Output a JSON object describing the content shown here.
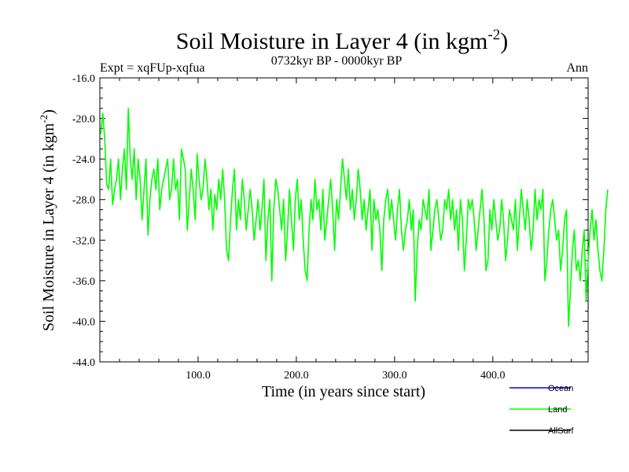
{
  "chart_data": {
    "type": "line",
    "title": "Soil Moisture in Layer 4 (in kgm",
    "title_sup": "-2",
    "title_end": ")",
    "subtitle": "0732kyr BP - 0000kyr BP",
    "expt_label": "Expt = xqFUp-xqfua",
    "period_label": "Ann",
    "xlabel": "Time (in years since start)",
    "ylabel": "Soil Moisture in Layer 4 (in kgm",
    "ylabel_sup": "-2",
    "ylabel_end": ")",
    "xlim": [
      0,
      497
    ],
    "ylim": [
      -44,
      -16
    ],
    "x_ticks": [
      100,
      200,
      300,
      400
    ],
    "x_tick_labels": [
      "100.0",
      "200.0",
      "300.0",
      "400.0"
    ],
    "y_ticks": [
      -16,
      -20,
      -24,
      -28,
      -32,
      -36,
      -40,
      -44
    ],
    "y_tick_labels": [
      "-16.0",
      "-20.0",
      "-24.0",
      "-28.0",
      "-32.0",
      "-36.0",
      "-40.0",
      "-44.0"
    ],
    "legend_position": "bottom-right",
    "series": [
      {
        "name": "Ocean",
        "color": "#0000ff",
        "values": []
      },
      {
        "name": "Land",
        "color": "#00ff00",
        "x_start": 1,
        "x_step": 2,
        "values": [
          -21.5,
          -19.5,
          -22,
          -26.5,
          -27,
          -24,
          -28.5,
          -27,
          -26,
          -24,
          -28,
          -25,
          -23,
          -27,
          -19,
          -24,
          -26,
          -23,
          -28,
          -24,
          -26,
          -30,
          -27,
          -24,
          -31.5,
          -28,
          -26,
          -25,
          -27,
          -24,
          -29,
          -27,
          -26,
          -25,
          -24,
          -28,
          -27,
          -24,
          -27,
          -26,
          -30,
          -23,
          -24,
          -25,
          -31,
          -28,
          -25,
          -27,
          -30,
          -23.5,
          -26,
          -28,
          -27,
          -24,
          -26,
          -29,
          -27,
          -31,
          -27.5,
          -29,
          -26,
          -28,
          -25,
          -28,
          -33,
          -34,
          -30,
          -27,
          -25,
          -31,
          -28,
          -30,
          -26,
          -28,
          -31,
          -29,
          -27,
          -29,
          -32,
          -30,
          -28,
          -31,
          -29,
          -26,
          -34,
          -30,
          -28,
          -36,
          -29,
          -26,
          -27,
          -29,
          -31,
          -28,
          -34,
          -31,
          -27,
          -30,
          -33,
          -28,
          -26,
          -30,
          -28,
          -32,
          -35,
          -36,
          -31,
          -28,
          -30,
          -26,
          -29,
          -28,
          -31,
          -27,
          -32,
          -30,
          -28,
          -26,
          -29,
          -33,
          -28,
          -30,
          -27,
          -24,
          -26,
          -28,
          -25,
          -29,
          -27,
          -30,
          -28,
          -25,
          -27,
          -30,
          -28,
          -31,
          -29,
          -27,
          -33,
          -28,
          -30,
          -29,
          -31,
          -35,
          -30,
          -28,
          -27,
          -30,
          -28,
          -30,
          -32,
          -29,
          -27,
          -31,
          -33,
          -31,
          -30,
          -28,
          -31,
          -29,
          -38,
          -33,
          -30,
          -31,
          -28,
          -29,
          -30,
          -27,
          -33,
          -31,
          -29,
          -28,
          -30,
          -32,
          -31,
          -28,
          -29,
          -27,
          -30,
          -28,
          -31,
          -29,
          -33,
          -28,
          -30,
          -35,
          -32,
          -28,
          -29,
          -28,
          -30,
          -33,
          -31,
          -29,
          -27,
          -30,
          -35,
          -34,
          -29,
          -31,
          -28,
          -30,
          -32,
          -31,
          -28,
          -30,
          -34,
          -32,
          -29,
          -30,
          -31,
          -28,
          -33,
          -30,
          -27,
          -29,
          -31,
          -28,
          -30,
          -33,
          -31,
          -27,
          -30,
          -28,
          -29,
          -27,
          -36,
          -34,
          -31,
          -29,
          -28,
          -30,
          -32,
          -31,
          -35,
          -33,
          -30,
          -29,
          -40.5,
          -37,
          -33,
          -31,
          -35,
          -34,
          -36,
          -33,
          -31,
          -38,
          -34,
          -31,
          -29,
          -32,
          -30,
          -33,
          -35,
          -36,
          -33,
          -29,
          -27
        ]
      },
      {
        "name": "AllSurf",
        "color": "#000000",
        "values": []
      }
    ]
  }
}
